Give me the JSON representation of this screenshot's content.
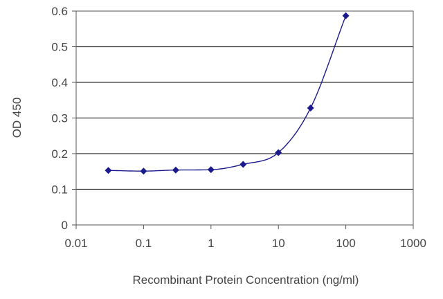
{
  "chart_data": {
    "type": "scatter",
    "title": "",
    "xlabel": "Recombinant Protein Concentration (ng/ml)",
    "ylabel": "OD 450",
    "x_scale": "log",
    "xlim": [
      0.01,
      1000
    ],
    "ylim": [
      0,
      0.6
    ],
    "x_ticks": [
      0.01,
      0.1,
      1,
      10,
      100,
      1000
    ],
    "x_tick_labels": [
      "0.01",
      "0.1",
      "1",
      "10",
      "100",
      "1000"
    ],
    "y_ticks": [
      0,
      0.1,
      0.2,
      0.3,
      0.4,
      0.5,
      0.6
    ],
    "y_tick_labels": [
      "0",
      "0.1",
      "0.2",
      "0.3",
      "0.4",
      "0.5",
      "0.6"
    ],
    "grid": "horizontal",
    "legend": "none",
    "marker": "diamond",
    "color": "#1a1a8c",
    "series": [
      {
        "x": [
          0.03,
          0.1,
          0.3,
          1,
          3,
          10,
          30,
          100
        ],
        "values": [
          0.153,
          0.151,
          0.154,
          0.155,
          0.17,
          0.203,
          0.328,
          0.587
        ],
        "fit_curve": true
      }
    ]
  }
}
